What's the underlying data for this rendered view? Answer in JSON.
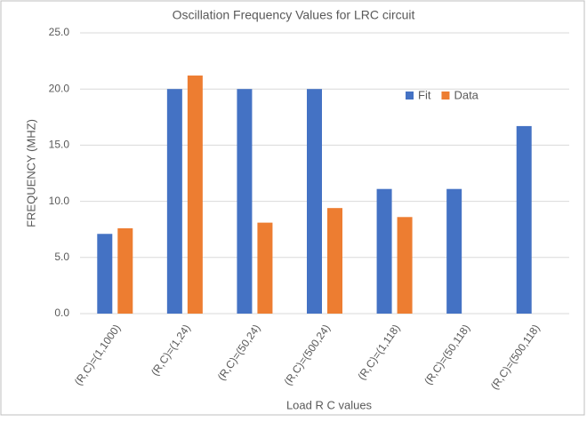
{
  "chart_data": {
    "type": "bar",
    "title": "Oscillation Frequency Values for LRC circuit",
    "x_label": "Load R C values",
    "y_label": "FREQUENCY (MHZ)",
    "categories": [
      "(R,C)=(1,1000)",
      "(R,C)=(1,24)",
      "(R,C)=(50,24)",
      "(R,C)=(500,24)",
      "(R,C)=(1,118)",
      "(R,C)=(50,118)",
      "(R,C)=(500,118)"
    ],
    "series": [
      {
        "name": "Fit",
        "color": "#4472c4",
        "values": [
          7.1,
          20.0,
          20.0,
          20.0,
          11.1,
          11.1,
          16.7
        ]
      },
      {
        "name": "Data",
        "color": "#ed7d31",
        "values": [
          7.6,
          21.2,
          8.1,
          9.4,
          8.6,
          null,
          null
        ]
      }
    ],
    "ylim": [
      0,
      25
    ],
    "yticks": [
      {
        "value": 0,
        "label": "0.0"
      },
      {
        "value": 5,
        "label": "5.0"
      },
      {
        "value": 10,
        "label": "10.0"
      },
      {
        "value": 15,
        "label": "15.0"
      },
      {
        "value": 20,
        "label": "20.0"
      },
      {
        "value": 25,
        "label": "25.0"
      }
    ],
    "grid": true,
    "legend": "upper right"
  }
}
